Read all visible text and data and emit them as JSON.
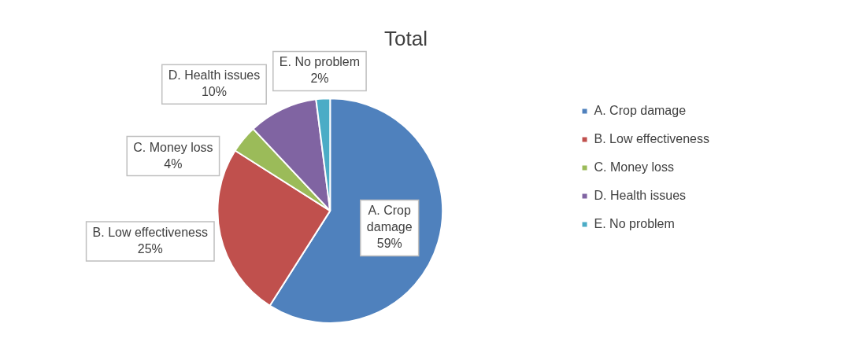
{
  "chart_data": {
    "type": "pie",
    "title": "Total",
    "categories": [
      "A. Crop damage",
      "B. Low effectiveness",
      "C. Money loss",
      "D. Health issues",
      "E. No problem"
    ],
    "values": [
      59,
      25,
      4,
      10,
      2
    ],
    "colors": [
      "#4f81bd",
      "#c0504d",
      "#9bbb59",
      "#8064a2",
      "#4bacc6"
    ],
    "value_labels": [
      "59%",
      "25%",
      "4%",
      "10%",
      "2%"
    ],
    "legend": "right"
  }
}
